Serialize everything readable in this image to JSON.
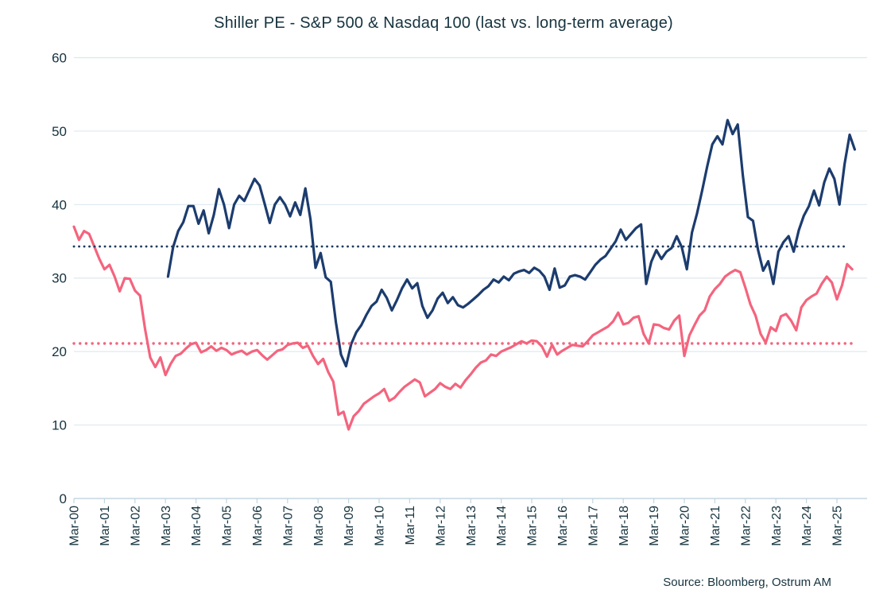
{
  "title": "Shiller PE - S&P 500 & Nasdaq 100 (last vs. long-term average)",
  "source": "Source: Bloomberg,  Ostrum AM",
  "colors": {
    "sp500": "#F4647E",
    "nasdaq100": "#1C3C6E",
    "nasdaq100_average": "#1E3A5F",
    "text": "#15333F",
    "gridline": "#DCE8EE",
    "axis": "#C3D6E0"
  },
  "chart_data": {
    "type": "line",
    "title": "Shiller PE - S&P 500 & Nasdaq 100 (last vs. long-term average)",
    "xlabel": "",
    "ylabel": "",
    "ylim": [
      0,
      60
    ],
    "grid": true,
    "legend_position": "none",
    "y_ticks": [
      0,
      10,
      20,
      30,
      40,
      50,
      60
    ],
    "x_tick_labels": [
      "Mar-00",
      "Mar-01",
      "Mar-02",
      "Mar-03",
      "Mar-04",
      "Mar-05",
      "Mar-06",
      "Mar-07",
      "Mar-08",
      "Mar-09",
      "Mar-10",
      "Mar-11",
      "Mar-12",
      "Mar-13",
      "Mar-14",
      "Mar-15",
      "Mar-16",
      "Mar-17",
      "Mar-18",
      "Mar-19",
      "Mar-20",
      "Mar-21",
      "Mar-22",
      "Mar-23",
      "Mar-24",
      "Mar-25"
    ],
    "x_note": "month index 0 = Mar-2000, values sampled every 2 months",
    "series": [
      {
        "id": "sp500",
        "name": "Shiller PE S&P 500",
        "color": "#F4647E",
        "start_month": 0,
        "step_months": 2,
        "values": [
          37,
          35.2,
          36.4,
          36,
          34.3,
          32.6,
          31.2,
          31.8,
          30.2,
          28.2,
          30,
          29.9,
          28.3,
          27.6,
          23,
          19.2,
          17.9,
          19.2,
          16.8,
          18.3,
          19.4,
          19.7,
          20.4,
          21,
          21.2,
          19.9,
          20.2,
          20.7,
          20.1,
          20.5,
          20.2,
          19.6,
          19.9,
          20.1,
          19.6,
          20,
          20.2,
          19.5,
          18.9,
          19.5,
          20.1,
          20.3,
          20.9,
          21.1,
          21.2,
          20.5,
          20.8,
          19.4,
          18.3,
          19,
          17.2,
          15.9,
          11.4,
          11.8,
          9.4,
          11.2,
          11.9,
          12.9,
          13.4,
          13.9,
          14.3,
          14.9,
          13.3,
          13.7,
          14.5,
          15.2,
          15.7,
          16.2,
          15.8,
          13.9,
          14.4,
          14.9,
          15.7,
          15.2,
          14.9,
          15.6,
          15.1,
          16.1,
          16.9,
          17.8,
          18.5,
          18.8,
          19.6,
          19.4,
          20,
          20.3,
          20.6,
          21,
          21.4,
          21.1,
          21.5,
          21.4,
          20.7,
          19.3,
          20.9,
          19.6,
          20.1,
          20.5,
          20.9,
          20.8,
          20.7,
          21.4,
          22.2,
          22.6,
          23,
          23.4,
          24.1,
          25.3,
          23.7,
          23.9,
          24.6,
          24.8,
          22.4,
          21.1,
          23.7,
          23.6,
          23.2,
          23,
          24.2,
          24.9,
          19.4,
          22.2,
          23.6,
          24.9,
          25.6,
          27.5,
          28.5,
          29.2,
          30.2,
          30.7,
          31.1,
          30.8,
          28.7,
          26.4,
          24.9,
          22.4,
          21.2,
          23.3,
          22.8,
          24.8,
          25.1,
          24.2,
          22.9,
          26,
          27,
          27.5,
          27.9,
          29.2,
          30.2,
          29.4,
          27.1,
          29,
          31.9,
          31.2
        ]
      },
      {
        "id": "nasdaq100",
        "name": "Shiller PE Nasdaq 100",
        "color": "#1C3C6E",
        "start_month": 37,
        "step_months": 2,
        "values": [
          30.2,
          34.2,
          36.4,
          37.6,
          39.8,
          39.8,
          37.4,
          39.2,
          36.1,
          38.6,
          42.1,
          40,
          36.8,
          40,
          41.2,
          40.5,
          42,
          43.5,
          42.6,
          40.1,
          37.5,
          40,
          41,
          40,
          38.4,
          40.3,
          38.6,
          42.2,
          38,
          31.4,
          33.4,
          30.1,
          29.5,
          24,
          19.6,
          18,
          21,
          22.6,
          23.6,
          25,
          26.2,
          26.8,
          28.4,
          27.3,
          25.6,
          27,
          28.6,
          29.8,
          28.6,
          29.3,
          26.2,
          24.6,
          25.6,
          27.2,
          28,
          26.6,
          27.4,
          26.3,
          26,
          26.5,
          27.1,
          27.7,
          28.4,
          28.9,
          29.8,
          29.4,
          30.2,
          29.7,
          30.6,
          30.9,
          31.1,
          30.7,
          31.4,
          31,
          30.2,
          28.4,
          31.3,
          28.7,
          29,
          30.2,
          30.4,
          30.2,
          29.8,
          30.8,
          31.8,
          32.5,
          33,
          34,
          35,
          36.6,
          35.2,
          36,
          36.8,
          37.3,
          29.2,
          32.2,
          33.8,
          32.6,
          33.6,
          34.1,
          35.7,
          34.2,
          31.2,
          36.2,
          38.8,
          41.9,
          45.2,
          48.2,
          49.3,
          48.2,
          51.5,
          49.6,
          50.9,
          44,
          38.3,
          37.8,
          33.8,
          31,
          32.3,
          29.2,
          33.6,
          34.9,
          35.7,
          33.6,
          36.5,
          38.5,
          39.8,
          41.9,
          39.9,
          43,
          44.9,
          43.5,
          40,
          45.5,
          49.5,
          47.5
        ]
      },
      {
        "id": "sp500-average",
        "name": "S&P 500 long-term average",
        "color": "#F4647E",
        "style": "dotted",
        "value": 21.1
      },
      {
        "id": "nasdaq100-average",
        "name": "Nasdaq 100 long-term average",
        "color": "#1E3A5F",
        "style": "dotted",
        "value": 34.3
      }
    ]
  }
}
